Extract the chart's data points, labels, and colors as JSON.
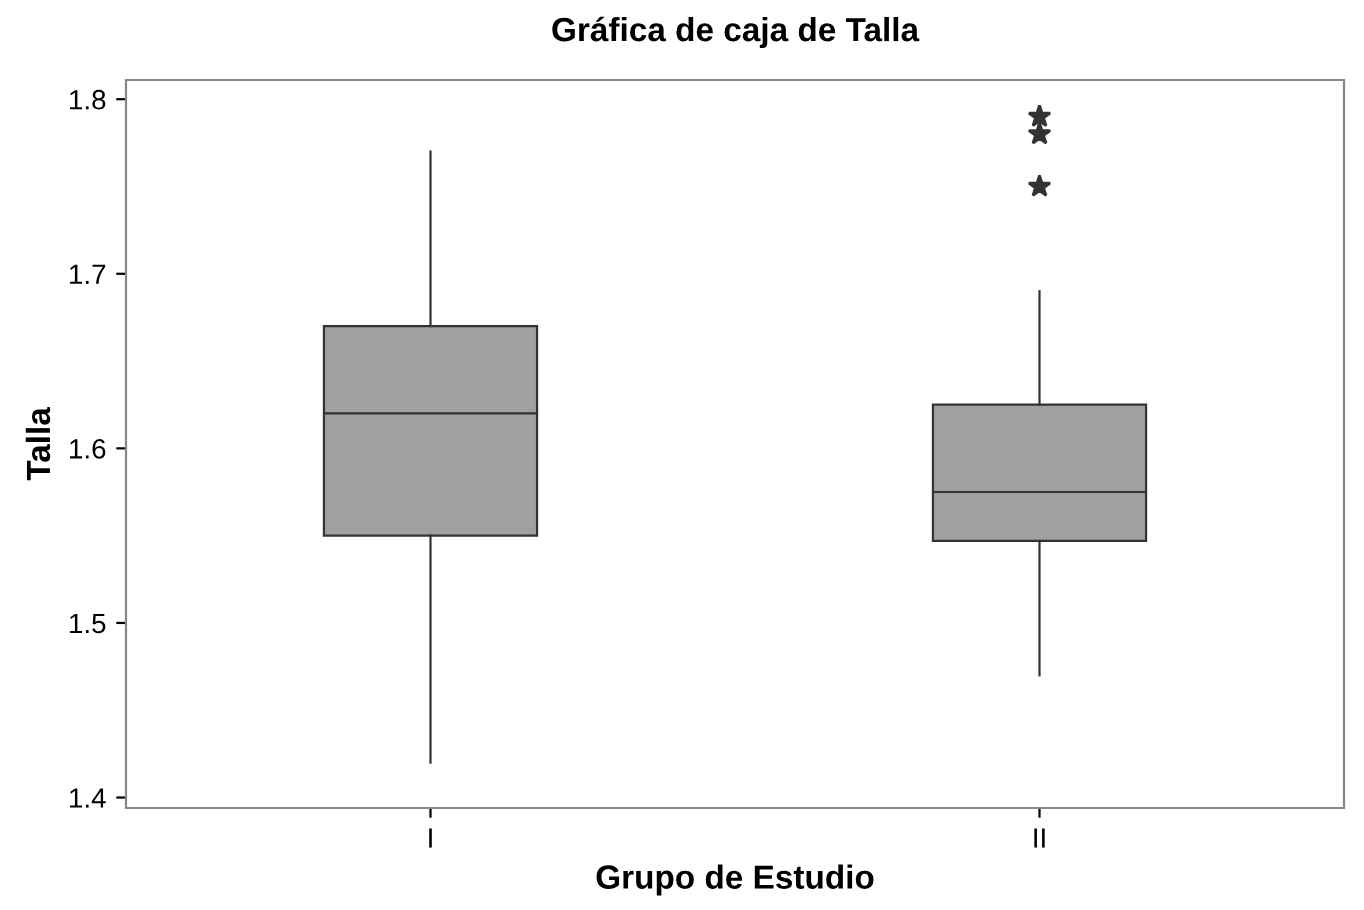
{
  "chart_data": {
    "type": "box",
    "title": "Gráfica de caja de Talla",
    "xlabel": "Grupo de Estudio",
    "ylabel": "Talla",
    "categories": [
      "I",
      "II"
    ],
    "boxes": [
      {
        "low": 1.42,
        "q1": 1.55,
        "median": 1.62,
        "q3": 1.67,
        "high": 1.77
      },
      {
        "low": 1.47,
        "q1": 1.547,
        "median": 1.575,
        "q3": 1.625,
        "high": 1.69,
        "outliers": [
          1.79,
          1.78,
          1.75
        ]
      }
    ],
    "color": "#a0a0a0",
    "marker": "star",
    "ylim": [
      1.394,
      1.811
    ],
    "yticks": [
      1.4,
      1.5,
      1.6,
      1.7,
      1.8
    ],
    "grid": false,
    "legend": false
  }
}
